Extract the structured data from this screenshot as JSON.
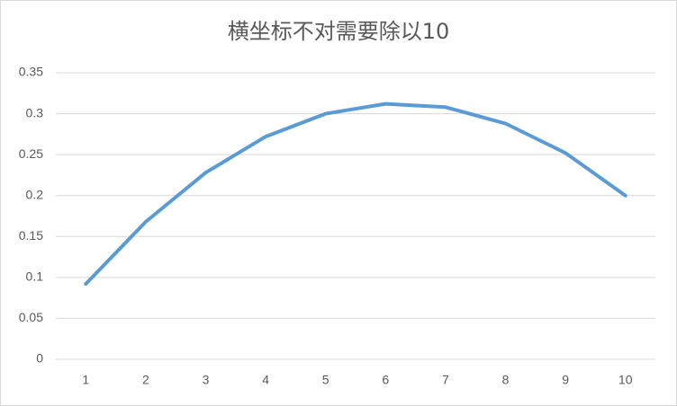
{
  "chart_data": {
    "type": "line",
    "title": "横坐标不对需要除以10",
    "categories": [
      "1",
      "2",
      "3",
      "4",
      "5",
      "6",
      "7",
      "8",
      "9",
      "10"
    ],
    "series": [
      {
        "color": "#5b9bd5",
        "values": [
          0.092,
          0.168,
          0.228,
          0.272,
          0.3,
          0.312,
          0.308,
          0.288,
          0.252,
          0.2
        ]
      }
    ],
    "ylim": [
      0,
      0.35
    ],
    "yticks": [
      0,
      0.05,
      0.1,
      0.15,
      0.2,
      0.25,
      0.3,
      0.35
    ],
    "grid": true
  }
}
